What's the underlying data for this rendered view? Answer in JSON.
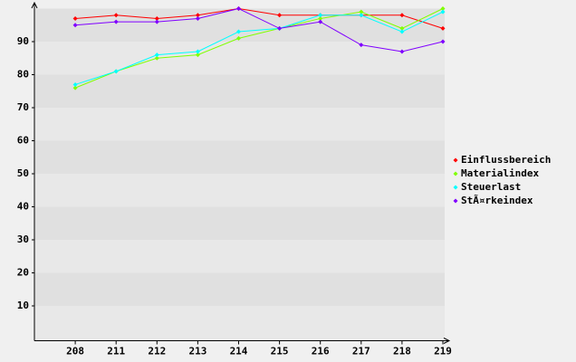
{
  "chart_data": {
    "type": "line",
    "categories": [
      "208",
      "211",
      "212",
      "213",
      "214",
      "215",
      "216",
      "217",
      "218",
      "219"
    ],
    "series": [
      {
        "name": "Einflussbereich",
        "color": "#ff0000",
        "values": [
          97,
          98,
          97,
          98,
          100,
          98,
          98,
          98,
          98,
          94
        ]
      },
      {
        "name": "Materialindex",
        "color": "#80ff00",
        "values": [
          76,
          81,
          85,
          86,
          91,
          94,
          97,
          99,
          94,
          100
        ]
      },
      {
        "name": "Steuerlast",
        "color": "#00ffff",
        "values": [
          77,
          81,
          86,
          87,
          93,
          94,
          98,
          98,
          93,
          99
        ]
      },
      {
        "name": "StÃ¤rkeindex",
        "color": "#8000ff",
        "values": [
          95,
          96,
          96,
          97,
          100,
          94,
          96,
          89,
          87,
          90
        ]
      }
    ],
    "ylim": [
      0,
      100
    ],
    "yticks": [
      10,
      20,
      30,
      40,
      50,
      60,
      70,
      80,
      90
    ],
    "grid": true,
    "legend": "right"
  }
}
